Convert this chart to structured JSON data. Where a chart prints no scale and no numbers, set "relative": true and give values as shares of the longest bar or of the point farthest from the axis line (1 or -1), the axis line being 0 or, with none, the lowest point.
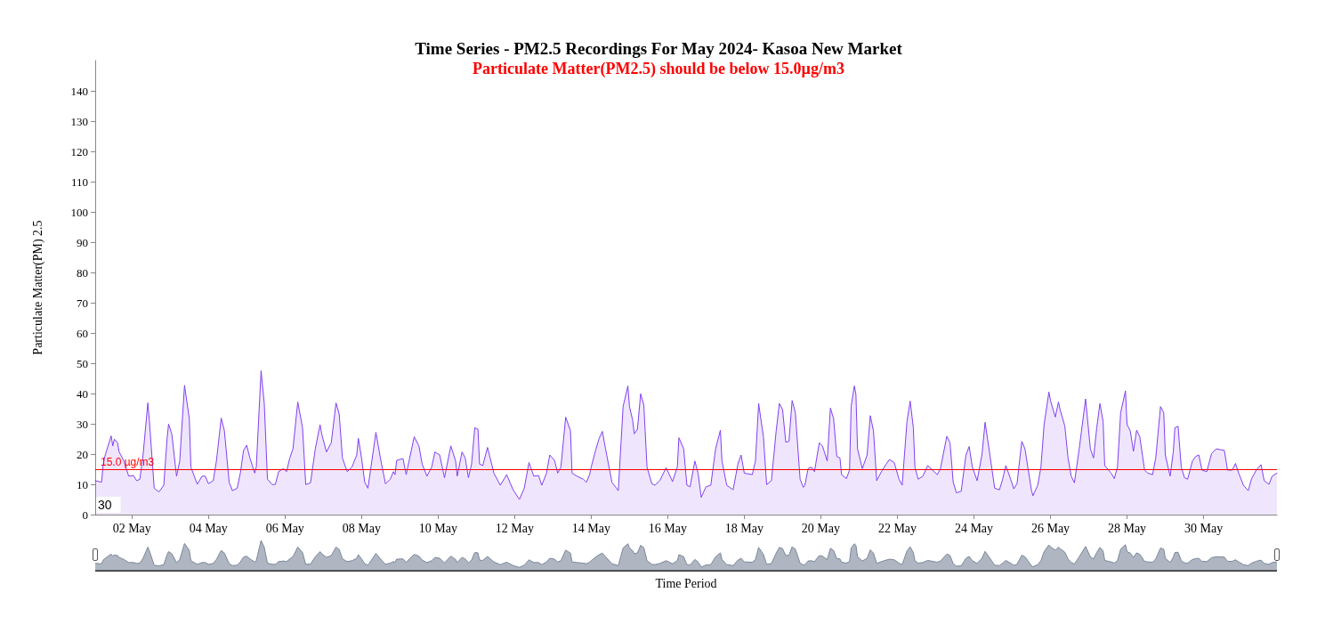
{
  "chart_data": [
    {
      "type": "area",
      "title": "Time Series - PM2.5 Recordings For May 2024- Kasoa New Market",
      "subtitle": "Particulate Matter(PM2.5) should be below 15.0µg/m3",
      "xlabel": "Time Period",
      "ylabel": "Particulate Matter(PM) 2.5",
      "annotations": [
        "30"
      ],
      "x": [
        "2024-05-01T01:00",
        "2024-05-01T05:00",
        "2024-05-01T06:00",
        "2024-05-01T07:00",
        "2024-05-01T11:00",
        "2024-05-01T12:00",
        "2024-05-01T13:00",
        "2024-05-01T15:00",
        "2024-05-01T16:00",
        "2024-05-01T19:00",
        "2024-05-01T22:00",
        "2024-05-02T01:00",
        "2024-05-02T03:00",
        "2024-05-02T05:00",
        "2024-05-02T07:00",
        "2024-05-02T10:00",
        "2024-05-02T11:00",
        "2024-05-02T14:00",
        "2024-05-02T17:00",
        "2024-05-02T20:00",
        "2024-05-02T22:00",
        "2024-05-02T23:00",
        "2024-05-03T01:00",
        "2024-05-03T04:00",
        "2024-05-03T06:00",
        "2024-05-03T09:00",
        "2024-05-03T12:00",
        "2024-05-03T13:00",
        "2024-05-03T17:00",
        "2024-05-03T20:00",
        "2024-05-03T22:00",
        "2024-05-04T00:00",
        "2024-05-04T03:00",
        "2024-05-04T05:00",
        "2024-05-04T08:00",
        "2024-05-04T10:00",
        "2024-05-04T13:00",
        "2024-05-04T15:00",
        "2024-05-04T18:00",
        "2024-05-04T20:00",
        "2024-05-04T22:00",
        "2024-05-05T00:00",
        "2024-05-05T02:00",
        "2024-05-05T05:00",
        "2024-05-05T06:00",
        "2024-05-05T09:00",
        "2024-05-05T11:00",
        "2024-05-05T13:00",
        "2024-05-05T16:00",
        "2024-05-05T18:00",
        "2024-05-05T20:00",
        "2024-05-05T23:00",
        "2024-05-06T01:00",
        "2024-05-06T03:00",
        "2024-05-06T05:00",
        "2024-05-06T08:00",
        "2024-05-06T11:00",
        "2024-05-06T13:00",
        "2024-05-06T16:00",
        "2024-05-06T19:00",
        "2024-05-06T22:00",
        "2024-05-06T23:00",
        "2024-05-07T02:00",
        "2024-05-07T05:00",
        "2024-05-07T08:00",
        "2024-05-07T10:00",
        "2024-05-07T12:00",
        "2024-05-07T15:00",
        "2024-05-07T18:00",
        "2024-05-07T21:00",
        "2024-05-07T22:00",
        "2024-05-08T00:00",
        "2024-05-08T02:00",
        "2024-05-08T04:00",
        "2024-05-08T07:00",
        "2024-05-08T09:00",
        "2024-05-08T12:00",
        "2024-05-08T15:00",
        "2024-05-08T18:00",
        "2024-05-08T20:00",
        "2024-05-08T21:00",
        "2024-05-08T22:00",
        "2024-05-09T02:00",
        "2024-05-09T04:00",
        "2024-05-09T09:00",
        "2024-05-09T12:00",
        "2024-05-09T14:00",
        "2024-05-09T17:00",
        "2024-05-09T20:00",
        "2024-05-09T22:00",
        "2024-05-10T01:00",
        "2024-05-10T04:00",
        "2024-05-10T08:00",
        "2024-05-10T11:00",
        "2024-05-10T12:00",
        "2024-05-10T15:00",
        "2024-05-10T17:00",
        "2024-05-10T19:00",
        "2024-05-10T21:00",
        "2024-05-10T23:00",
        "2024-05-11T01:00",
        "2024-05-11T02:00",
        "2024-05-11T04:00",
        "2024-05-11T07:00",
        "2024-05-11T11:00",
        "2024-05-11T15:00",
        "2024-05-11T19:00",
        "2024-05-11T23:00",
        "2024-05-12T03:00",
        "2024-05-12T06:00",
        "2024-05-12T09:00",
        "2024-05-12T10:00",
        "2024-05-12T12:00",
        "2024-05-12T15:00",
        "2024-05-12T17:00",
        "2024-05-12T20:00",
        "2024-05-12T22:00",
        "2024-05-13T01:00",
        "2024-05-13T03:00",
        "2024-05-13T05:00",
        "2024-05-13T08:00",
        "2024-05-13T11:00",
        "2024-05-13T12:00",
        "2024-05-13T15:00",
        "2024-05-13T19:00",
        "2024-05-13T21:00",
        "2024-05-13T23:00",
        "2024-05-14T00:00",
        "2024-05-14T03:00",
        "2024-05-14T05:00",
        "2024-05-14T07:00",
        "2024-05-14T09:00",
        "2024-05-14T13:00",
        "2024-05-14T17:00",
        "2024-05-14T20:00",
        "2024-05-14T23:00",
        "2024-05-15T00:00",
        "2024-05-15T02:00",
        "2024-05-15T03:00",
        "2024-05-15T05:00",
        "2024-05-15T07:00",
        "2024-05-15T09:00",
        "2024-05-15T11:00",
        "2024-05-15T14:00",
        "2024-05-15T16:00",
        "2024-05-15T19:00",
        "2024-05-15T23:00",
        "2024-05-16T03:00",
        "2024-05-16T06:00",
        "2024-05-16T07:00",
        "2024-05-16T10:00",
        "2024-05-16T12:00",
        "2024-05-16T14:00",
        "2024-05-16T17:00",
        "2024-05-16T19:00",
        "2024-05-16T21:00",
        "2024-05-17T00:00",
        "2024-05-17T03:00",
        "2024-05-17T06:00",
        "2024-05-17T09:00",
        "2024-05-17T10:00",
        "2024-05-17T13:00",
        "2024-05-17T17:00",
        "2024-05-17T20:00",
        "2024-05-17T22:00",
        "2024-05-18T00:00",
        "2024-05-18T05:00",
        "2024-05-18T07:00",
        "2024-05-18T09:00",
        "2024-05-18T12:00",
        "2024-05-18T14:00",
        "2024-05-18T17:00",
        "2024-05-18T20:00",
        "2024-05-18T22:00",
        "2024-05-19T00:00",
        "2024-05-19T02:00",
        "2024-05-19T04:00",
        "2024-05-19T06:00",
        "2024-05-19T08:00",
        "2024-05-19T11:00",
        "2024-05-19T13:00",
        "2024-05-19T14:00",
        "2024-05-19T16:00",
        "2024-05-19T18:00",
        "2024-05-19T20:00",
        "2024-05-19T23:00",
        "2024-05-20T01:00",
        "2024-05-20T04:00",
        "2024-05-20T06:00",
        "2024-05-20T08:00",
        "2024-05-20T10:00",
        "2024-05-20T12:00",
        "2024-05-20T13:00",
        "2024-05-20T16:00",
        "2024-05-20T18:00",
        "2024-05-20T19:00",
        "2024-05-20T21:00",
        "2024-05-20T22:00",
        "2024-05-20T23:00",
        "2024-05-21T02:00",
        "2024-05-21T05:00",
        "2024-05-21T07:00",
        "2024-05-21T09:00",
        "2024-05-21T11:00",
        "2024-05-21T14:00",
        "2024-05-21T17:00",
        "2024-05-21T19:00",
        "2024-05-21T22:00",
        "2024-05-22T01:00",
        "2024-05-22T03:00",
        "2024-05-22T06:00",
        "2024-05-22T08:00",
        "2024-05-22T10:00",
        "2024-05-22T11:00",
        "2024-05-22T13:00",
        "2024-05-22T16:00",
        "2024-05-22T19:00",
        "2024-05-22T22:00",
        "2024-05-23T01:00",
        "2024-05-23T03:00",
        "2024-05-23T07:00",
        "2024-05-23T09:00",
        "2024-05-23T11:00",
        "2024-05-23T13:00",
        "2024-05-23T16:00",
        "2024-05-23T19:00",
        "2024-05-23T21:00",
        "2024-05-23T23:00",
        "2024-05-24T02:00",
        "2024-05-24T05:00",
        "2024-05-24T07:00",
        "2024-05-24T10:00",
        "2024-05-24T13:00",
        "2024-05-24T16:00",
        "2024-05-24T18:00",
        "2024-05-24T20:00",
        "2024-05-24T23:00",
        "2024-05-25T01:00",
        "2024-05-25T03:00",
        "2024-05-25T06:00",
        "2024-05-25T08:00",
        "2024-05-25T12:00",
        "2024-05-25T13:00",
        "2024-05-25T16:00",
        "2024-05-25T18:00",
        "2024-05-25T20:00",
        "2024-05-25T23:00",
        "2024-05-26T00:00",
        "2024-05-26T03:00",
        "2024-05-26T05:00",
        "2024-05-26T06:00",
        "2024-05-26T09:00",
        "2024-05-26T11:00",
        "2024-05-26T13:00",
        "2024-05-26T15:00",
        "2024-05-26T18:00",
        "2024-05-26T22:00",
        "2024-05-27T01:00",
        "2024-05-27T03:00",
        "2024-05-27T05:00",
        "2024-05-27T07:00",
        "2024-05-27T09:00",
        "2024-05-27T10:00",
        "2024-05-27T14:00",
        "2024-05-27T16:00",
        "2024-05-27T18:00",
        "2024-05-27T20:00",
        "2024-05-27T23:00",
        "2024-05-28T00:00",
        "2024-05-28T02:00",
        "2024-05-28T04:00",
        "2024-05-28T06:00",
        "2024-05-28T08:00",
        "2024-05-28T11:00",
        "2024-05-28T13:00",
        "2024-05-28T16:00",
        "2024-05-28T18:00",
        "2024-05-28T21:00",
        "2024-05-28T23:00",
        "2024-05-29T00:00",
        "2024-05-29T03:00",
        "2024-05-29T05:00",
        "2024-05-29T06:00",
        "2024-05-29T08:00",
        "2024-05-29T10:00",
        "2024-05-29T12:00",
        "2024-05-29T14:00",
        "2024-05-29T17:00",
        "2024-05-29T19:00",
        "2024-05-29T21:00",
        "2024-05-29T23:00",
        "2024-05-30T02:00",
        "2024-05-30T05:00",
        "2024-05-30T08:00",
        "2024-05-30T13:00",
        "2024-05-30T15:00",
        "2024-05-30T18:00",
        "2024-05-30T20:00",
        "2024-05-30T22:00",
        "2024-05-31T01:00",
        "2024-05-31T04:00",
        "2024-05-31T06:00",
        "2024-05-31T09:00",
        "2024-05-31T12:00",
        "2024-05-31T14:00",
        "2024-05-31T17:00",
        "2024-05-31T19:00",
        "2024-05-31T22:00"
      ],
      "series": [
        {
          "color": "#8040f0",
          "values": [
            11.2,
            10.7,
            16.5,
            19.2,
            26,
            22.7,
            24.9,
            23.7,
            20.7,
            17.7,
            12.7,
            12.9,
            11.2,
            11.7,
            19.7,
            36.9,
            30.7,
            8.7,
            7.5,
            9.7,
            24.7,
            29.9,
            26.7,
            12.7,
            17.7,
            42.7,
            31.7,
            15.7,
            10,
            12.7,
            12.7,
            10.2,
            11.2,
            17.7,
            31.9,
            27.7,
            10.7,
            7.9,
            8.7,
            13.7,
            21.2,
            22.9,
            18.7,
            13.7,
            15.7,
            47.5,
            36.7,
            11.7,
            9.9,
            10,
            14.2,
            15.2,
            14.2,
            18.7,
            21.7,
            37.2,
            28.7,
            9.9,
            10.5,
            21.7,
            29.7,
            26.7,
            20.7,
            23.7,
            36.9,
            33.2,
            18.7,
            14.2,
            15.7,
            19.7,
            25.2,
            18.7,
            10.7,
            8.7,
            19.7,
            27.2,
            18.2,
            10.2,
            11.7,
            14.2,
            13.2,
            17.9,
            18.5,
            13.2,
            25.7,
            22.7,
            16.7,
            12.7,
            15.7,
            20.7,
            19.7,
            12.2,
            22.7,
            17.7,
            12.7,
            20.7,
            18.7,
            12.2,
            16.7,
            28.7,
            28.2,
            16.7,
            16.2,
            22.2,
            13.7,
            9.7,
            13.2,
            8.2,
            5,
            8.7,
            17.2,
            15.7,
            12.7,
            12.9,
            9.7,
            13.7,
            19.7,
            17.9,
            13.7,
            15.7,
            32.2,
            27.7,
            13.7,
            12.7,
            11.7,
            10.7,
            13.2,
            15.7,
            21.7,
            25.2,
            27.5,
            21.7,
            10.7,
            7.9,
            35.7,
            42.5,
            35.7,
            31.2,
            26.7,
            28.2,
            39.9,
            36.2,
            15.7,
            10.2,
            9.7,
            11.2,
            15.5,
            10.9,
            15.7,
            25.4,
            21.7,
            9.7,
            9.2,
            17.7,
            13.7,
            5.7,
            9.2,
            9.7,
            21.7,
            27.9,
            17.7,
            9.7,
            8.2,
            16.7,
            19.7,
            13.7,
            13.2,
            17.7,
            36.7,
            25.7,
            9.9,
            11.2,
            27.7,
            36.7,
            34.7,
            23.9,
            24.2,
            37.7,
            33.7,
            11.7,
            9,
            9.7,
            15.2,
            15.7,
            14.2,
            23.7,
            22.7,
            17.7,
            35.2,
            31.7,
            19.2,
            18.7,
            13.2,
            11.9,
            14.7,
            35.7,
            42.5,
            39.7,
            21.7,
            15.2,
            19.7,
            32.7,
            27.7,
            11.2,
            14.2,
            16.7,
            18.2,
            17.2,
            11.7,
            9.7,
            30.7,
            37.5,
            28.7,
            15.7,
            11.7,
            12.7,
            16.2,
            14.7,
            13.2,
            15.2,
            25.9,
            23.7,
            10.7,
            7.2,
            7.7,
            19.7,
            22.5,
            15.7,
            11.2,
            19.7,
            30.5,
            19.7,
            8.7,
            8.2,
            11.7,
            16.2,
            11.7,
            8.5,
            10.2,
            24.2,
            21.7,
            8.2,
            6.2,
            9.7,
            15.7,
            29.7,
            40.5,
            37.7,
            32.2,
            37.2,
            34.7,
            29.2,
            18.7,
            12.7,
            10.5,
            21.7,
            38.2,
            21.7,
            18.7,
            28.7,
            36.7,
            30.7,
            16.2,
            13.7,
            11.9,
            15.7,
            33.7,
            40.9,
            29.7,
            27.7,
            20.9,
            27.9,
            25.7,
            14.7,
            13.7,
            13.2,
            18.7,
            35.7,
            33.7,
            19.7,
            12.7,
            20.7,
            28.7,
            29.2,
            15.7,
            12.2,
            11.7,
            17.7,
            19.2,
            19.7,
            14.7,
            14.2,
            20.2,
            21.7,
            21.2,
            14.7,
            14.7,
            16.9,
            13.7,
            9.7,
            7.9,
            11.7,
            14.7,
            16.5,
            11.2,
            10,
            12.7,
            13.7
          ]
        }
      ],
      "xlim": [
        "2024-05-01T01:00",
        "2024-05-31T22:00"
      ],
      "xticks": [
        {
          "value": "2024-05-02",
          "label": "02 May"
        },
        {
          "value": "2024-05-04",
          "label": "04 May"
        },
        {
          "value": "2024-05-06",
          "label": "06 May"
        },
        {
          "value": "2024-05-08",
          "label": "08 May"
        },
        {
          "value": "2024-05-10",
          "label": "10 May"
        },
        {
          "value": "2024-05-12",
          "label": "12 May"
        },
        {
          "value": "2024-05-14",
          "label": "14 May"
        },
        {
          "value": "2024-05-16",
          "label": "16 May"
        },
        {
          "value": "2024-05-18",
          "label": "18 May"
        },
        {
          "value": "2024-05-20",
          "label": "20 May"
        },
        {
          "value": "2024-05-22",
          "label": "22 May"
        },
        {
          "value": "2024-05-24",
          "label": "24 May"
        },
        {
          "value": "2024-05-26",
          "label": "26 May"
        },
        {
          "value": "2024-05-28",
          "label": "28 May"
        },
        {
          "value": "2024-05-30",
          "label": "30 May"
        }
      ],
      "ylim": [
        0,
        150
      ],
      "yticks": [
        0,
        10,
        20,
        30,
        40,
        50,
        60,
        70,
        80,
        90,
        100,
        110,
        120,
        130,
        140
      ],
      "ref_lines": [
        {
          "axis": "y",
          "value": 15,
          "label": "15.0 µg/m3",
          "color": "#ff0000"
        }
      ]
    },
    {
      "type": "area",
      "relative": true,
      "xlim": [
        "2024-05-01T01:00",
        "2024-05-31T22:00"
      ],
      "x": [
        "2024-05-01T01:00",
        "2024-05-01T05:00",
        "2024-05-01T06:00",
        "2024-05-01T07:00",
        "2024-05-01T11:00",
        "2024-05-01T12:00",
        "2024-05-01T13:00",
        "2024-05-01T15:00",
        "2024-05-01T16:00",
        "2024-05-01T19:00",
        "2024-05-01T22:00",
        "2024-05-02T01:00",
        "2024-05-02T03:00",
        "2024-05-02T05:00",
        "2024-05-02T07:00",
        "2024-05-02T10:00",
        "2024-05-02T11:00",
        "2024-05-02T14:00",
        "2024-05-02T17:00",
        "2024-05-02T20:00",
        "2024-05-02T22:00",
        "2024-05-02T23:00",
        "2024-05-03T01:00",
        "2024-05-03T04:00",
        "2024-05-03T06:00",
        "2024-05-03T09:00",
        "2024-05-03T12:00",
        "2024-05-03T13:00",
        "2024-05-03T17:00",
        "2024-05-03T20:00",
        "2024-05-03T22:00",
        "2024-05-04T00:00",
        "2024-05-04T03:00",
        "2024-05-04T05:00",
        "2024-05-04T08:00",
        "2024-05-04T10:00",
        "2024-05-04T13:00",
        "2024-05-04T15:00",
        "2024-05-04T18:00",
        "2024-05-04T20:00",
        "2024-05-04T22:00",
        "2024-05-05T00:00",
        "2024-05-05T02:00",
        "2024-05-05T05:00",
        "2024-05-05T06:00",
        "2024-05-05T09:00",
        "2024-05-05T11:00",
        "2024-05-05T13:00",
        "2024-05-05T16:00",
        "2024-05-05T18:00",
        "2024-05-05T20:00",
        "2024-05-05T23:00",
        "2024-05-06T01:00",
        "2024-05-06T03:00",
        "2024-05-06T05:00",
        "2024-05-06T08:00",
        "2024-05-06T11:00",
        "2024-05-06T13:00",
        "2024-05-06T16:00",
        "2024-05-06T19:00",
        "2024-05-06T22:00",
        "2024-05-06T23:00",
        "2024-05-07T02:00",
        "2024-05-07T05:00",
        "2024-05-07T08:00",
        "2024-05-07T10:00",
        "2024-05-07T12:00",
        "2024-05-07T15:00",
        "2024-05-07T18:00",
        "2024-05-07T21:00",
        "2024-05-07T22:00",
        "2024-05-08T00:00",
        "2024-05-08T02:00",
        "2024-05-08T04:00",
        "2024-05-08T07:00",
        "2024-05-08T09:00",
        "2024-05-08T12:00",
        "2024-05-08T15:00",
        "2024-05-08T18:00",
        "2024-05-08T20:00",
        "2024-05-08T21:00",
        "2024-05-08T22:00",
        "2024-05-09T02:00",
        "2024-05-09T04:00",
        "2024-05-09T09:00",
        "2024-05-09T12:00",
        "2024-05-09T14:00",
        "2024-05-09T17:00",
        "2024-05-09T20:00",
        "2024-05-09T22:00",
        "2024-05-10T01:00",
        "2024-05-10T04:00",
        "2024-05-10T08:00",
        "2024-05-10T11:00",
        "2024-05-10T12:00",
        "2024-05-10T15:00",
        "2024-05-10T17:00",
        "2024-05-10T19:00",
        "2024-05-10T21:00",
        "2024-05-10T23:00",
        "2024-05-11T01:00",
        "2024-05-11T02:00",
        "2024-05-11T04:00",
        "2024-05-11T07:00",
        "2024-05-11T11:00",
        "2024-05-11T15:00",
        "2024-05-11T19:00",
        "2024-05-11T23:00",
        "2024-05-12T03:00",
        "2024-05-12T06:00",
        "2024-05-12T09:00",
        "2024-05-12T10:00",
        "2024-05-12T12:00",
        "2024-05-12T15:00",
        "2024-05-12T17:00",
        "2024-05-12T20:00",
        "2024-05-12T22:00",
        "2024-05-13T01:00",
        "2024-05-13T03:00",
        "2024-05-13T05:00",
        "2024-05-13T08:00",
        "2024-05-13T11:00",
        "2024-05-13T12:00",
        "2024-05-13T15:00",
        "2024-05-13T19:00",
        "2024-05-13T21:00",
        "2024-05-13T23:00",
        "2024-05-14T00:00",
        "2024-05-14T03:00",
        "2024-05-14T05:00",
        "2024-05-14T07:00",
        "2024-05-14T09:00",
        "2024-05-14T13:00",
        "2024-05-14T17:00",
        "2024-05-14T20:00",
        "2024-05-14T23:00",
        "2024-05-15T00:00",
        "2024-05-15T02:00",
        "2024-05-15T03:00",
        "2024-05-15T05:00",
        "2024-05-15T07:00",
        "2024-05-15T09:00",
        "2024-05-15T11:00",
        "2024-05-15T14:00",
        "2024-05-15T16:00",
        "2024-05-15T19:00",
        "2024-05-15T23:00",
        "2024-05-16T03:00",
        "2024-05-16T06:00",
        "2024-05-16T07:00",
        "2024-05-16T10:00",
        "2024-05-16T12:00",
        "2024-05-16T14:00",
        "2024-05-16T17:00",
        "2024-05-16T19:00",
        "2024-05-16T21:00",
        "2024-05-17T00:00",
        "2024-05-17T03:00",
        "2024-05-17T06:00",
        "2024-05-17T09:00",
        "2024-05-17T10:00",
        "2024-05-17T13:00",
        "2024-05-17T17:00",
        "2024-05-17T20:00",
        "2024-05-17T22:00",
        "2024-05-18T00:00",
        "2024-05-18T05:00",
        "2024-05-18T07:00",
        "2024-05-18T09:00",
        "2024-05-18T12:00",
        "2024-05-18T14:00",
        "2024-05-18T17:00",
        "2024-05-18T20:00",
        "2024-05-18T22:00",
        "2024-05-19T00:00",
        "2024-05-19T02:00",
        "2024-05-19T04:00",
        "2024-05-19T06:00",
        "2024-05-19T08:00",
        "2024-05-19T11:00",
        "2024-05-19T13:00",
        "2024-05-19T14:00",
        "2024-05-19T16:00",
        "2024-05-19T18:00",
        "2024-05-19T20:00",
        "2024-05-19T23:00",
        "2024-05-20T01:00",
        "2024-05-20T04:00",
        "2024-05-20T06:00",
        "2024-05-20T08:00",
        "2024-05-20T10:00",
        "2024-05-20T12:00",
        "2024-05-20T13:00",
        "2024-05-20T16:00",
        "2024-05-20T18:00",
        "2024-05-20T19:00",
        "2024-05-20T21:00",
        "2024-05-20T22:00",
        "2024-05-20T23:00",
        "2024-05-21T02:00",
        "2024-05-21T05:00",
        "2024-05-21T07:00",
        "2024-05-21T09:00",
        "2024-05-21T11:00",
        "2024-05-21T14:00",
        "2024-05-21T17:00",
        "2024-05-21T19:00",
        "2024-05-21T22:00",
        "2024-05-22T01:00",
        "2024-05-22T03:00",
        "2024-05-22T06:00",
        "2024-05-22T08:00",
        "2024-05-22T10:00",
        "2024-05-22T11:00",
        "2024-05-22T13:00",
        "2024-05-22T16:00",
        "2024-05-22T19:00",
        "2024-05-22T22:00",
        "2024-05-23T01:00",
        "2024-05-23T03:00",
        "2024-05-23T07:00",
        "2024-05-23T09:00",
        "2024-05-23T11:00",
        "2024-05-23T13:00",
        "2024-05-23T16:00",
        "2024-05-23T19:00",
        "2024-05-23T21:00",
        "2024-05-23T23:00",
        "2024-05-24T02:00",
        "2024-05-24T05:00",
        "2024-05-24T07:00",
        "2024-05-24T10:00",
        "2024-05-24T13:00",
        "2024-05-24T16:00",
        "2024-05-24T18:00",
        "2024-05-24T20:00",
        "2024-05-24T23:00",
        "2024-05-25T01:00",
        "2024-05-25T03:00",
        "2024-05-25T06:00",
        "2024-05-25T08:00",
        "2024-05-25T12:00",
        "2024-05-25T13:00",
        "2024-05-25T16:00",
        "2024-05-25T18:00",
        "2024-05-25T20:00",
        "2024-05-25T23:00",
        "2024-05-26T00:00",
        "2024-05-26T03:00",
        "2024-05-26T05:00",
        "2024-05-26T06:00",
        "2024-05-26T09:00",
        "2024-05-26T11:00",
        "2024-05-26T13:00",
        "2024-05-26T15:00",
        "2024-05-26T18:00",
        "2024-05-26T22:00",
        "2024-05-27T01:00",
        "2024-05-27T03:00",
        "2024-05-27T05:00",
        "2024-05-27T07:00",
        "2024-05-27T09:00",
        "2024-05-27T10:00",
        "2024-05-27T14:00",
        "2024-05-27T16:00",
        "2024-05-27T18:00",
        "2024-05-27T20:00",
        "2024-05-27T23:00",
        "2024-05-28T00:00",
        "2024-05-28T02:00",
        "2024-05-28T04:00",
        "2024-05-28T06:00",
        "2024-05-28T08:00",
        "2024-05-28T11:00",
        "2024-05-28T13:00",
        "2024-05-28T16:00",
        "2024-05-28T18:00",
        "2024-05-28T21:00",
        "2024-05-28T23:00",
        "2024-05-29T00:00",
        "2024-05-29T03:00",
        "2024-05-29T05:00",
        "2024-05-29T06:00",
        "2024-05-29T08:00",
        "2024-05-29T10:00",
        "2024-05-29T12:00",
        "2024-05-29T14:00",
        "2024-05-29T17:00",
        "2024-05-29T19:00",
        "2024-05-29T21:00",
        "2024-05-29T23:00",
        "2024-05-30T02:00",
        "2024-05-30T05:00",
        "2024-05-30T08:00",
        "2024-05-30T13:00",
        "2024-05-30T15:00",
        "2024-05-30T18:00",
        "2024-05-30T20:00",
        "2024-05-30T22:00",
        "2024-05-31T01:00",
        "2024-05-31T04:00",
        "2024-05-31T06:00",
        "2024-05-31T09:00",
        "2024-05-31T12:00",
        "2024-05-31T14:00",
        "2024-05-31T17:00",
        "2024-05-31T19:00",
        "2024-05-31T22:00"
      ],
      "series": [
        {
          "color": "#7a8699",
          "values": [
            0.24,
            0.23,
            0.35,
            0.4,
            0.55,
            0.48,
            0.52,
            0.5,
            0.44,
            0.37,
            0.27,
            0.27,
            0.24,
            0.25,
            0.41,
            0.78,
            0.65,
            0.18,
            0.16,
            0.2,
            0.52,
            0.63,
            0.56,
            0.27,
            0.37,
            0.9,
            0.67,
            0.33,
            0.21,
            0.27,
            0.27,
            0.21,
            0.24,
            0.37,
            0.67,
            0.58,
            0.23,
            0.17,
            0.18,
            0.29,
            0.45,
            0.48,
            0.39,
            0.29,
            0.33,
            1,
            0.77,
            0.25,
            0.21,
            0.21,
            0.3,
            0.32,
            0.3,
            0.39,
            0.46,
            0.78,
            0.6,
            0.21,
            0.22,
            0.46,
            0.63,
            0.56,
            0.44,
            0.5,
            0.78,
            0.7,
            0.39,
            0.3,
            0.33,
            0.41,
            0.53,
            0.39,
            0.23,
            0.18,
            0.41,
            0.57,
            0.38,
            0.21,
            0.25,
            0.3,
            0.28,
            0.38,
            0.39,
            0.28,
            0.54,
            0.48,
            0.35,
            0.27,
            0.33,
            0.44,
            0.41,
            0.26,
            0.48,
            0.37,
            0.27,
            0.44,
            0.39,
            0.26,
            0.35,
            0.6,
            0.59,
            0.35,
            0.34,
            0.47,
            0.29,
            0.2,
            0.28,
            0.17,
            0.11,
            0.18,
            0.36,
            0.33,
            0.27,
            0.27,
            0.2,
            0.29,
            0.41,
            0.38,
            0.29,
            0.33,
            0.68,
            0.58,
            0.29,
            0.27,
            0.25,
            0.23,
            0.28,
            0.33,
            0.46,
            0.53,
            0.58,
            0.46,
            0.23,
            0.17,
            0.75,
            0.89,
            0.75,
            0.66,
            0.56,
            0.59,
            0.84,
            0.76,
            0.33,
            0.21,
            0.2,
            0.24,
            0.33,
            0.23,
            0.33,
            0.53,
            0.46,
            0.2,
            0.19,
            0.37,
            0.29,
            0.12,
            0.19,
            0.2,
            0.46,
            0.59,
            0.37,
            0.2,
            0.17,
            0.35,
            0.41,
            0.29,
            0.28,
            0.37,
            0.77,
            0.54,
            0.21,
            0.24,
            0.58,
            0.77,
            0.73,
            0.5,
            0.51,
            0.79,
            0.71,
            0.25,
            0.19,
            0.2,
            0.32,
            0.33,
            0.3,
            0.5,
            0.48,
            0.37,
            0.74,
            0.67,
            0.4,
            0.39,
            0.28,
            0.25,
            0.31,
            0.75,
            0.89,
            0.84,
            0.46,
            0.32,
            0.41,
            0.69,
            0.58,
            0.24,
            0.3,
            0.35,
            0.38,
            0.36,
            0.25,
            0.2,
            0.65,
            0.79,
            0.6,
            0.33,
            0.25,
            0.27,
            0.34,
            0.31,
            0.28,
            0.32,
            0.55,
            0.5,
            0.23,
            0.15,
            0.16,
            0.41,
            0.47,
            0.33,
            0.24,
            0.41,
            0.64,
            0.41,
            0.18,
            0.17,
            0.25,
            0.34,
            0.25,
            0.18,
            0.21,
            0.51,
            0.46,
            0.17,
            0.13,
            0.2,
            0.33,
            0.63,
            0.85,
            0.79,
            0.68,
            0.78,
            0.73,
            0.61,
            0.39,
            0.27,
            0.22,
            0.46,
            0.8,
            0.46,
            0.39,
            0.6,
            0.77,
            0.65,
            0.34,
            0.29,
            0.25,
            0.33,
            0.71,
            0.86,
            0.63,
            0.58,
            0.44,
            0.59,
            0.54,
            0.31,
            0.29,
            0.28,
            0.39,
            0.75,
            0.71,
            0.41,
            0.27,
            0.44,
            0.6,
            0.61,
            0.33,
            0.26,
            0.25,
            0.37,
            0.4,
            0.41,
            0.31,
            0.3,
            0.43,
            0.46,
            0.45,
            0.31,
            0.31,
            0.36,
            0.29,
            0.2,
            0.17,
            0.25,
            0.31,
            0.35,
            0.24,
            0.21,
            0.27,
            0.29
          ]
        }
      ]
    }
  ]
}
